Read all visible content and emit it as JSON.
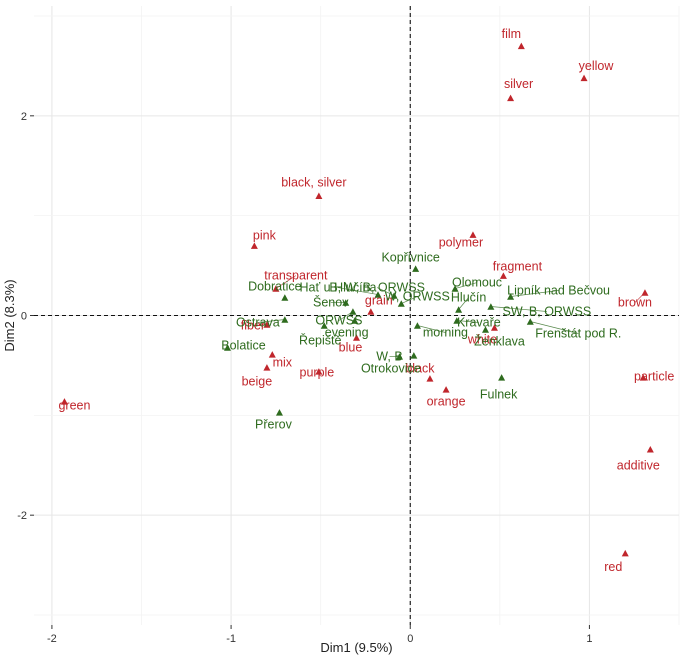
{
  "chart_data": {
    "type": "scatter",
    "title": "",
    "xlabel": "Dim1 (9.5%)",
    "ylabel": "Dim2 (8.3%)",
    "xlim": [
      -2.1,
      1.5
    ],
    "ylim": [
      -3.1,
      3.1
    ],
    "xticks": [
      -2,
      -1,
      0,
      1
    ],
    "yticks": [
      -2,
      0,
      2
    ],
    "xtick_labels": [
      "-2",
      "-1",
      "0",
      "1"
    ],
    "ytick_labels": [
      "-2",
      "0",
      "2"
    ],
    "grid": true,
    "reference_lines": [
      {
        "axis": "x",
        "value": 0,
        "style": "dashed"
      },
      {
        "axis": "y",
        "value": 0,
        "style": "dashed"
      }
    ],
    "colors": {
      "red": "#c0262c",
      "green": "#2e6b1e"
    },
    "series": [
      {
        "name": "red",
        "color": "#c0262c",
        "points": [
          {
            "label": "film",
            "x": 0.62,
            "y": 2.7
          },
          {
            "label": "yellow",
            "x": 0.97,
            "y": 2.38
          },
          {
            "label": "silver",
            "x": 0.56,
            "y": 2.18
          },
          {
            "label": "black, silver",
            "x": -0.51,
            "y": 1.2
          },
          {
            "label": "pink",
            "x": -0.87,
            "y": 0.7
          },
          {
            "label": "polymer",
            "x": 0.35,
            "y": 0.81
          },
          {
            "label": "fragment",
            "x": 0.52,
            "y": 0.4
          },
          {
            "label": "brown",
            "x": 1.31,
            "y": 0.23
          },
          {
            "label": "transparent",
            "x": -0.75,
            "y": 0.27
          },
          {
            "label": "fiber",
            "x": -0.8,
            "y": -0.09
          },
          {
            "label": "blue",
            "x": -0.3,
            "y": -0.22
          },
          {
            "label": "grain",
            "x": -0.22,
            "y": 0.04
          },
          {
            "label": "mix",
            "x": -0.77,
            "y": -0.39
          },
          {
            "label": "purple",
            "x": -0.51,
            "y": -0.56
          },
          {
            "label": "beige",
            "x": -0.8,
            "y": -0.52
          },
          {
            "label": "black",
            "x": 0.11,
            "y": -0.63
          },
          {
            "label": "white",
            "x": 0.47,
            "y": -0.12
          },
          {
            "label": "orange",
            "x": 0.2,
            "y": -0.74
          },
          {
            "label": "particle",
            "x": 1.3,
            "y": -0.62
          },
          {
            "label": "additive",
            "x": 1.34,
            "y": -1.34
          },
          {
            "label": "red",
            "x": 1.2,
            "y": -2.38
          },
          {
            "label": "green",
            "x": -1.93,
            "y": -0.86
          }
        ]
      },
      {
        "name": "green",
        "color": "#2e6b1e",
        "points": [
          {
            "label": "Kopřivnice",
            "x": 0.03,
            "y": 0.47
          },
          {
            "label": "Hať u Hlučína",
            "x": -0.18,
            "y": 0.21
          },
          {
            "label": "B, W, B, ORWSS",
            "x": -0.09,
            "y": 0.2
          },
          {
            "label": "Olomouc",
            "x": 0.25,
            "y": 0.27
          },
          {
            "label": "Dobratice",
            "x": -0.7,
            "y": 0.18
          },
          {
            "label": "Šenov",
            "x": -0.36,
            "y": 0.13
          },
          {
            "label": "W, ORWSS",
            "x": -0.05,
            "y": 0.12
          },
          {
            "label": "Hlučín",
            "x": 0.27,
            "y": 0.06
          },
          {
            "label": "Lipník nad Bečvou",
            "x": 0.56,
            "y": 0.19
          },
          {
            "label": "SW, B, ORWSS",
            "x": 0.45,
            "y": 0.09
          },
          {
            "label": "Ostrava",
            "x": -0.7,
            "y": -0.04
          },
          {
            "label": "ORWSS",
            "x": -0.32,
            "y": 0.04
          },
          {
            "label": "evening",
            "x": -0.31,
            "y": -0.05
          },
          {
            "label": "Bolatice",
            "x": -1.02,
            "y": -0.32
          },
          {
            "label": "Řepiště",
            "x": -0.48,
            "y": -0.1
          },
          {
            "label": "W, B",
            "x": -0.06,
            "y": -0.41
          },
          {
            "label": "morning",
            "x": 0.04,
            "y": -0.1
          },
          {
            "label": "Kravaře",
            "x": 0.26,
            "y": -0.05
          },
          {
            "label": "Ženklava",
            "x": 0.42,
            "y": -0.14
          },
          {
            "label": "Frenštát pod R.",
            "x": 0.67,
            "y": -0.06
          },
          {
            "label": "Otrokovice",
            "x": 0.02,
            "y": -0.4
          },
          {
            "label": "Fulnek",
            "x": 0.51,
            "y": -0.62
          },
          {
            "label": "Přerov",
            "x": -0.73,
            "y": -0.97
          }
        ]
      }
    ]
  }
}
